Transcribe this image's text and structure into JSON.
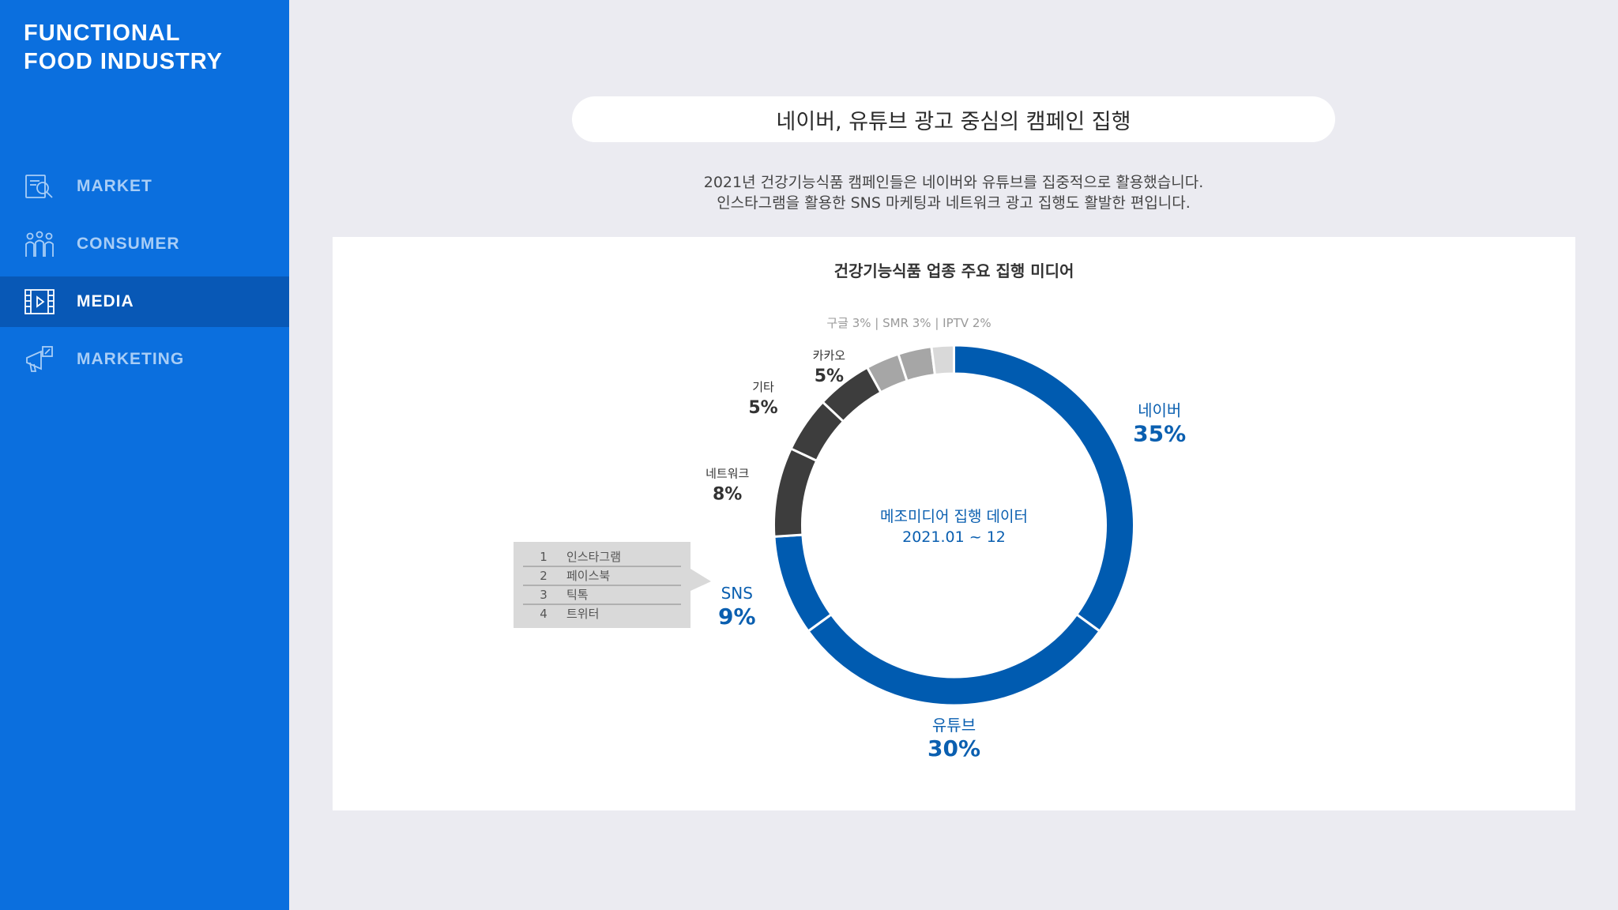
{
  "sidebar": {
    "brand_line1": "FUNCTIONAL",
    "brand_line2": "FOOD INDUSTRY",
    "items": [
      {
        "label": "MARKET",
        "icon": "magnifier-document-icon",
        "active": false
      },
      {
        "label": "CONSUMER",
        "icon": "people-group-icon",
        "active": false
      },
      {
        "label": "MEDIA",
        "icon": "video-film-icon",
        "active": true
      },
      {
        "label": "MARKETING",
        "icon": "megaphone-icon",
        "active": false
      }
    ]
  },
  "main": {
    "heading": "네이버, 유튜브 광고 중심의 캠페인 집행",
    "desc_line1": "2021년 건강기능식품 캠페인들은 네이버와 유튜브를 집중적으로 활용했습니다.",
    "desc_line2": "인스타그램을 활용한 SNS 마케팅과 네트워크 광고 집행도 활발한 편입니다."
  },
  "colors": {
    "sidebar": "#0b6fde",
    "sidebar_active": "#0858b6",
    "brand_blue": "#005bb0",
    "dark_gray": "#3d3d3d",
    "mid_gray": "#a6a6a6",
    "light_gray": "#d9d9d9"
  },
  "chart_data": {
    "type": "donut",
    "title": "건강기능식품 업종 주요 집행 미디어",
    "center_label_line1": "메조미디어 집행 데이터",
    "center_label_line2": "2021.01 ~ 12",
    "small_slices_note": "구글 3% | SMR 3% | IPTV 2%",
    "unit": "%",
    "slices": [
      {
        "name": "네이버",
        "value": 35,
        "label": "35%",
        "color": "#005bb0"
      },
      {
        "name": "유튜브",
        "value": 30,
        "label": "30%",
        "color": "#005bb0"
      },
      {
        "name": "SNS",
        "value": 9,
        "label": "9%",
        "color": "#005bb0"
      },
      {
        "name": "네트워크",
        "value": 8,
        "label": "8%",
        "color": "#3d3d3d"
      },
      {
        "name": "기타",
        "value": 5,
        "label": "5%",
        "color": "#3d3d3d"
      },
      {
        "name": "카카오",
        "value": 5,
        "label": "5%",
        "color": "#3d3d3d"
      },
      {
        "name": "구글",
        "value": 3,
        "label": "3%",
        "color": "#a6a6a6"
      },
      {
        "name": "SMR",
        "value": 3,
        "label": "3%",
        "color": "#a6a6a6"
      },
      {
        "name": "IPTV",
        "value": 2,
        "label": "2%",
        "color": "#d9d9d9"
      }
    ],
    "sns_breakdown": [
      {
        "rank": "1",
        "name": "인스타그램"
      },
      {
        "rank": "2",
        "name": "페이스북"
      },
      {
        "rank": "3",
        "name": "틱톡"
      },
      {
        "rank": "4",
        "name": "트위터"
      }
    ]
  }
}
